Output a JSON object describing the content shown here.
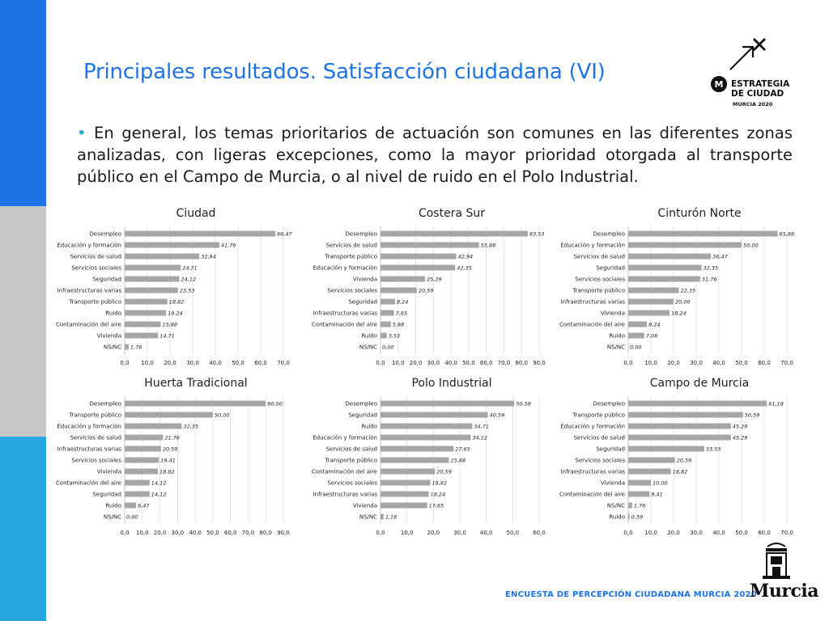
{
  "title": "Principales resultados. Satisfacción ciudadana (VI)",
  "bullet": {
    "dot": "•",
    "text": "En general, los temas prioritarios de actuación son comunes en las diferentes zonas analizadas, con ligeras excepciones, como la mayor prioridad otorgada al transporte público en el Campo de Murcia, o al nivel de ruido en el Polo Industrial."
  },
  "logo": {
    "line1": "ESTRATEGIA",
    "line2": "DE CIUDAD",
    "line3": "MURCIA 2020",
    "icon": "arrow-cross-icon"
  },
  "footer": "ENCUESTA DE PERCEPCIÓN CIUDADANA MURCIA 2020",
  "crest": {
    "text": "Murcia",
    "icon": "castle-crest-icon"
  },
  "colors": {
    "accent": "#1e73e6",
    "bar": "#a6a6a6",
    "sidebar_top": "#1e73e6",
    "sidebar_mid": "#c8c8c8",
    "sidebar_bottom": "#27a8e0"
  },
  "chart_data": [
    {
      "type": "bar",
      "orientation": "horizontal",
      "title": "Ciudad",
      "categories": [
        "Desempleo",
        "Educación y formación",
        "Servicios de salud",
        "Servicios sociales",
        "Seguridad",
        "Infraestructuras varias",
        "Transporte público",
        "Ruido",
        "Contaminación del aire",
        "Vivienda",
        "NS/NC"
      ],
      "values": [
        66.47,
        41.76,
        32.94,
        24.71,
        24.12,
        23.53,
        18.82,
        18.24,
        15.88,
        14.71,
        1.76
      ],
      "value_labels": [
        "66,47",
        "41,76",
        "32,94",
        "24,71",
        "24,12",
        "23,53",
        "18,82",
        "18,24",
        "15,88",
        "14,71",
        "1,76"
      ],
      "ticks": [
        "0,0",
        "10,0",
        "20,0",
        "30,0",
        "40,0",
        "50,0",
        "60,0",
        "70,0"
      ],
      "xlim": [
        0,
        70
      ],
      "grid": true
    },
    {
      "type": "bar",
      "orientation": "horizontal",
      "title": "Costera Sur",
      "categories": [
        "Desempleo",
        "Servicios de salud",
        "Transporte público",
        "Educación y formación",
        "Vivienda",
        "Servicios sociales",
        "Seguridad",
        "Infraestructuras varias",
        "Contaminación del aire",
        "Ruido",
        "NS/NC"
      ],
      "values": [
        83.53,
        55.88,
        42.94,
        42.35,
        25.29,
        20.59,
        8.24,
        7.65,
        5.88,
        3.53,
        0.0
      ],
      "value_labels": [
        "83,53",
        "55,88",
        "42,94",
        "42,35",
        "25,29",
        "20,59",
        "8,24",
        "7,65",
        "5,88",
        "3,53",
        "0,00"
      ],
      "ticks": [
        "0,0",
        "10,0",
        "20,0",
        "30,0",
        "40,0",
        "50,0",
        "60,0",
        "70,0",
        "80,0",
        "90,0"
      ],
      "xlim": [
        0,
        90
      ],
      "grid": true
    },
    {
      "type": "bar",
      "orientation": "horizontal",
      "title": "Cinturón Norte",
      "categories": [
        "Desempleo",
        "Educación y formación",
        "Servicios de salud",
        "Seguridad",
        "Servicios sociales",
        "Transporte público",
        "Infraestructuras varias",
        "Vivienda",
        "Contaminación del aire",
        "Ruido",
        "NS/NC"
      ],
      "values": [
        65.88,
        50.0,
        36.47,
        32.35,
        31.76,
        22.35,
        20.0,
        18.24,
        8.24,
        7.06,
        0.0
      ],
      "value_labels": [
        "65,88",
        "50,00",
        "36,47",
        "32,35",
        "31,76",
        "22,35",
        "20,00",
        "18,24",
        "8,24",
        "7,06",
        "0,00"
      ],
      "ticks": [
        "0,0",
        "10,0",
        "20,0",
        "30,0",
        "40,0",
        "50,0",
        "60,0",
        "70,0"
      ],
      "xlim": [
        0,
        70
      ],
      "grid": true
    },
    {
      "type": "bar",
      "orientation": "horizontal",
      "title": "Huerta Tradicional",
      "categories": [
        "Desempleo",
        "Transporte público",
        "Educación y formación",
        "Servicios de salud",
        "Infraestructuras varias",
        "Servicios sociales",
        "Vivienda",
        "Contaminación del aire",
        "Seguridad",
        "Ruido",
        "NS/NC"
      ],
      "values": [
        80.0,
        50.0,
        32.35,
        21.76,
        20.59,
        19.41,
        18.82,
        14.12,
        14.12,
        6.47,
        0.0
      ],
      "value_labels": [
        "80,00",
        "50,00",
        "32,35",
        "21,76",
        "20,59",
        "19,41",
        "18,82",
        "14,12",
        "14,12",
        "6,47",
        "0,00"
      ],
      "ticks": [
        "0,0",
        "10,0",
        "20,0",
        "30,0",
        "40,0",
        "50,0",
        "60,0",
        "70,0",
        "80,0",
        "90,0"
      ],
      "xlim": [
        0,
        90
      ],
      "grid": true
    },
    {
      "type": "bar",
      "orientation": "horizontal",
      "title": "Polo Industrial",
      "categories": [
        "Desempleo",
        "Seguridad",
        "Ruido",
        "Educación y formación",
        "Servicios de salud",
        "Transporte público",
        "Contaminación del aire",
        "Servicios sociales",
        "Infraestructuras varias",
        "Vivienda",
        "NS/NC"
      ],
      "values": [
        50.59,
        40.59,
        34.71,
        34.12,
        27.65,
        25.88,
        20.59,
        18.82,
        18.24,
        17.65,
        1.18
      ],
      "value_labels": [
        "50,59",
        "40,59",
        "34,71",
        "34,12",
        "27,65",
        "25,88",
        "20,59",
        "18,82",
        "18,24",
        "17,65",
        "1,18"
      ],
      "ticks": [
        "0,0",
        "10,0",
        "20,0",
        "30,0",
        "40,0",
        "50,0",
        "60,0"
      ],
      "xlim": [
        0,
        60
      ],
      "grid": true
    },
    {
      "type": "bar",
      "orientation": "horizontal",
      "title": "Campo de Murcia",
      "categories": [
        "Desempleo",
        "Transporte público",
        "Educación y formación",
        "Servicios de salud",
        "Seguridad",
        "Servicios sociales",
        "Infraestructuras varias",
        "Vivienda",
        "Contaminación del aire",
        "NS/NC",
        "Ruido"
      ],
      "values": [
        61.18,
        50.59,
        45.29,
        45.29,
        33.53,
        20.59,
        18.82,
        10.0,
        9.41,
        1.76,
        0.59
      ],
      "value_labels": [
        "61,18",
        "50,59",
        "45,29",
        "45,29",
        "33,53",
        "20,59",
        "18,82",
        "10,00",
        "9,41",
        "1,76",
        "0,59"
      ],
      "ticks": [
        "0,0",
        "10,0",
        "20,0",
        "30,0",
        "40,0",
        "50,0",
        "60,0",
        "70,0"
      ],
      "xlim": [
        0,
        70
      ],
      "grid": true
    }
  ]
}
